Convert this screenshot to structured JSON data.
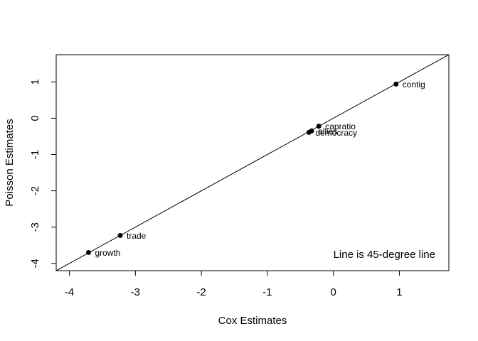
{
  "chart_data": {
    "type": "scatter",
    "xlabel": "Cox Estimates",
    "ylabel": "Poisson Estimates",
    "xlim": [
      -4.2,
      1.75
    ],
    "ylim": [
      -4.2,
      1.75
    ],
    "xticks": [
      -4,
      -3,
      -2,
      -1,
      0,
      1
    ],
    "yticks": [
      -4,
      -3,
      -2,
      -1,
      0,
      1
    ],
    "annotation": "Line is 45-degree line",
    "reference_line": {
      "type": "identity",
      "slope": 1,
      "intercept": 0
    },
    "points": [
      {
        "label": "contig",
        "x": 0.95,
        "y": 0.94
      },
      {
        "label": "capratio",
        "x": -0.22,
        "y": -0.22
      },
      {
        "label": "allies",
        "x": -0.33,
        "y": -0.35
      },
      {
        "label": "democracy",
        "x": -0.37,
        "y": -0.39
      },
      {
        "label": "trade",
        "x": -3.23,
        "y": -3.23
      },
      {
        "label": "growth",
        "x": -3.71,
        "y": -3.7
      }
    ]
  }
}
